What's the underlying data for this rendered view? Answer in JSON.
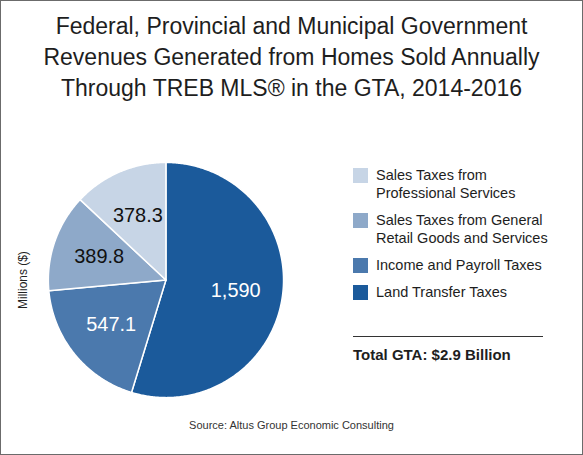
{
  "chart_data": {
    "type": "pie",
    "title": "Federal, Provincial and Municipal Government\nRevenues Generated from Homes Sold Annually\nThrough TREB MLS® in the GTA, 2014-2016",
    "ylabel": "Millions ($)",
    "categories": [
      "Land Transfer Taxes",
      "Income and Payroll Taxes",
      "Sales Taxes from General Retail Goods and Services",
      "Sales Taxes from Professional Services"
    ],
    "values": [
      1590,
      547.1,
      389.8,
      378.3
    ],
    "value_labels": [
      "1,590",
      "547.1",
      "389.8",
      "378.3"
    ],
    "colors": [
      "#1b5a9b",
      "#4b79ad",
      "#8ea9c9",
      "#c7d5e6"
    ],
    "data_labels": true,
    "legend": "right",
    "annotations": [
      "Total GTA: $2.9 Billion"
    ],
    "source": "Source: Altus Group Economic Consulting"
  }
}
